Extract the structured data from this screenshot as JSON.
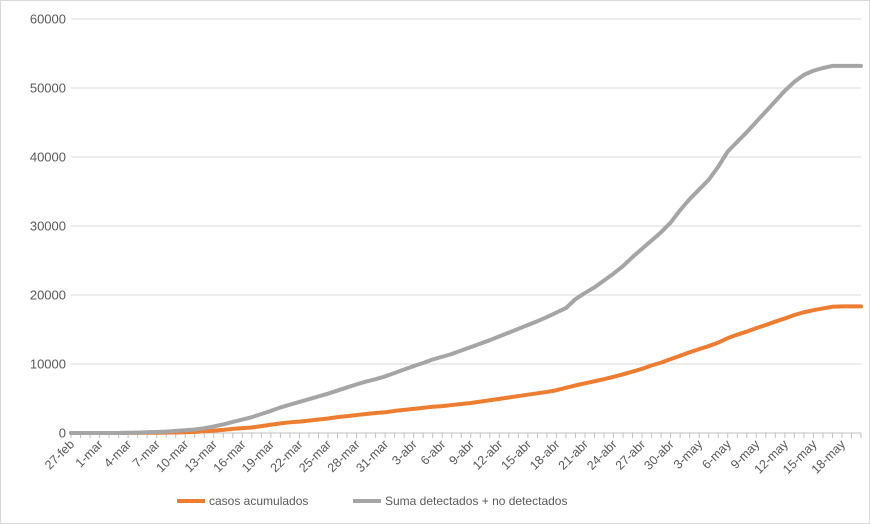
{
  "chart_data": {
    "type": "line",
    "title": "",
    "xlabel": "",
    "ylabel": "",
    "ylim": [
      0,
      60000
    ],
    "yticks": [
      0,
      10000,
      20000,
      30000,
      40000,
      50000,
      60000
    ],
    "grid": true,
    "legend_position": "bottom",
    "x_start_date": "2020-02-27",
    "x": [
      "27-feb",
      "28-feb",
      "29-feb",
      "1-mar",
      "2-mar",
      "3-mar",
      "4-mar",
      "5-mar",
      "6-mar",
      "7-mar",
      "8-mar",
      "9-mar",
      "10-mar",
      "11-mar",
      "12-mar",
      "13-mar",
      "14-mar",
      "15-mar",
      "16-mar",
      "17-mar",
      "18-mar",
      "19-mar",
      "20-mar",
      "21-mar",
      "22-mar",
      "23-mar",
      "24-mar",
      "25-mar",
      "26-mar",
      "27-mar",
      "28-mar",
      "29-mar",
      "30-mar",
      "31-mar",
      "1-abr",
      "2-abr",
      "3-abr",
      "4-abr",
      "5-abr",
      "6-abr",
      "7-abr",
      "8-abr",
      "9-abr",
      "10-abr",
      "11-abr",
      "12-abr",
      "13-abr",
      "14-abr",
      "15-abr",
      "16-abr",
      "17-abr",
      "18-abr",
      "19-abr",
      "20-abr",
      "21-abr",
      "22-abr",
      "23-abr",
      "24-abr",
      "25-abr",
      "26-abr",
      "27-abr",
      "28-abr",
      "29-abr",
      "30-abr",
      "1-may",
      "2-may",
      "3-may",
      "4-may",
      "5-may",
      "6-may",
      "7-may",
      "8-may",
      "9-may",
      "10-may",
      "11-may",
      "12-may",
      "13-may",
      "14-may",
      "15-may",
      "16-may",
      "17-may",
      "18-may",
      "19-may",
      "20-may"
    ],
    "tick_labels": [
      "27-feb",
      "1-mar",
      "4-mar",
      "7-mar",
      "10-mar",
      "13-mar",
      "16-mar",
      "19-mar",
      "22-mar",
      "25-mar",
      "28-mar",
      "31-mar",
      "3-abr",
      "6-abr",
      "9-abr",
      "12-abr",
      "15-abr",
      "18-abr",
      "21-abr",
      "24-abr",
      "27-abr",
      "30-abr",
      "3-may",
      "6-may",
      "9-may",
      "12-may",
      "15-may",
      "18-may"
    ],
    "series": [
      {
        "name": "casos acumulados",
        "color": "#ed7d31",
        "values": [
          0,
          0,
          0,
          0,
          0,
          0,
          10,
          20,
          30,
          40,
          60,
          80,
          100,
          150,
          250,
          350,
          450,
          600,
          700,
          800,
          1000,
          1200,
          1400,
          1550,
          1650,
          1800,
          1950,
          2100,
          2300,
          2450,
          2600,
          2750,
          2900,
          3000,
          3200,
          3350,
          3500,
          3650,
          3800,
          3900,
          4050,
          4200,
          4350,
          4550,
          4750,
          4950,
          5150,
          5350,
          5550,
          5750,
          5950,
          6200,
          6550,
          6900,
          7200,
          7500,
          7800,
          8150,
          8500,
          8900,
          9300,
          9800,
          10200,
          10700,
          11200,
          11700,
          12150,
          12600,
          13100,
          13750,
          14250,
          14700,
          15200,
          15650,
          16150,
          16600,
          17100,
          17500,
          17800,
          18050,
          18300,
          18350,
          18350,
          18350
        ]
      },
      {
        "name": "Suma detectados + no detectados",
        "color": "#a5a5a5",
        "values": [
          0,
          0,
          0,
          0,
          0,
          0,
          10,
          50,
          100,
          150,
          200,
          300,
          400,
          500,
          700,
          950,
          1250,
          1600,
          1950,
          2300,
          2750,
          3200,
          3700,
          4100,
          4500,
          4900,
          5300,
          5700,
          6150,
          6600,
          7050,
          7450,
          7800,
          8200,
          8700,
          9200,
          9700,
          10150,
          10650,
          11050,
          11450,
          11950,
          12450,
          12950,
          13450,
          14000,
          14550,
          15100,
          15650,
          16200,
          16800,
          17450,
          18100,
          19400,
          20300,
          21100,
          22100,
          23100,
          24200,
          25500,
          26700,
          27900,
          29100,
          30500,
          32300,
          33900,
          35300,
          36700,
          38600,
          40800,
          42200,
          43600,
          45100,
          46600,
          48100,
          49600,
          50900,
          51900,
          52500,
          52900,
          53200,
          53200,
          53200,
          53200
        ]
      }
    ]
  }
}
